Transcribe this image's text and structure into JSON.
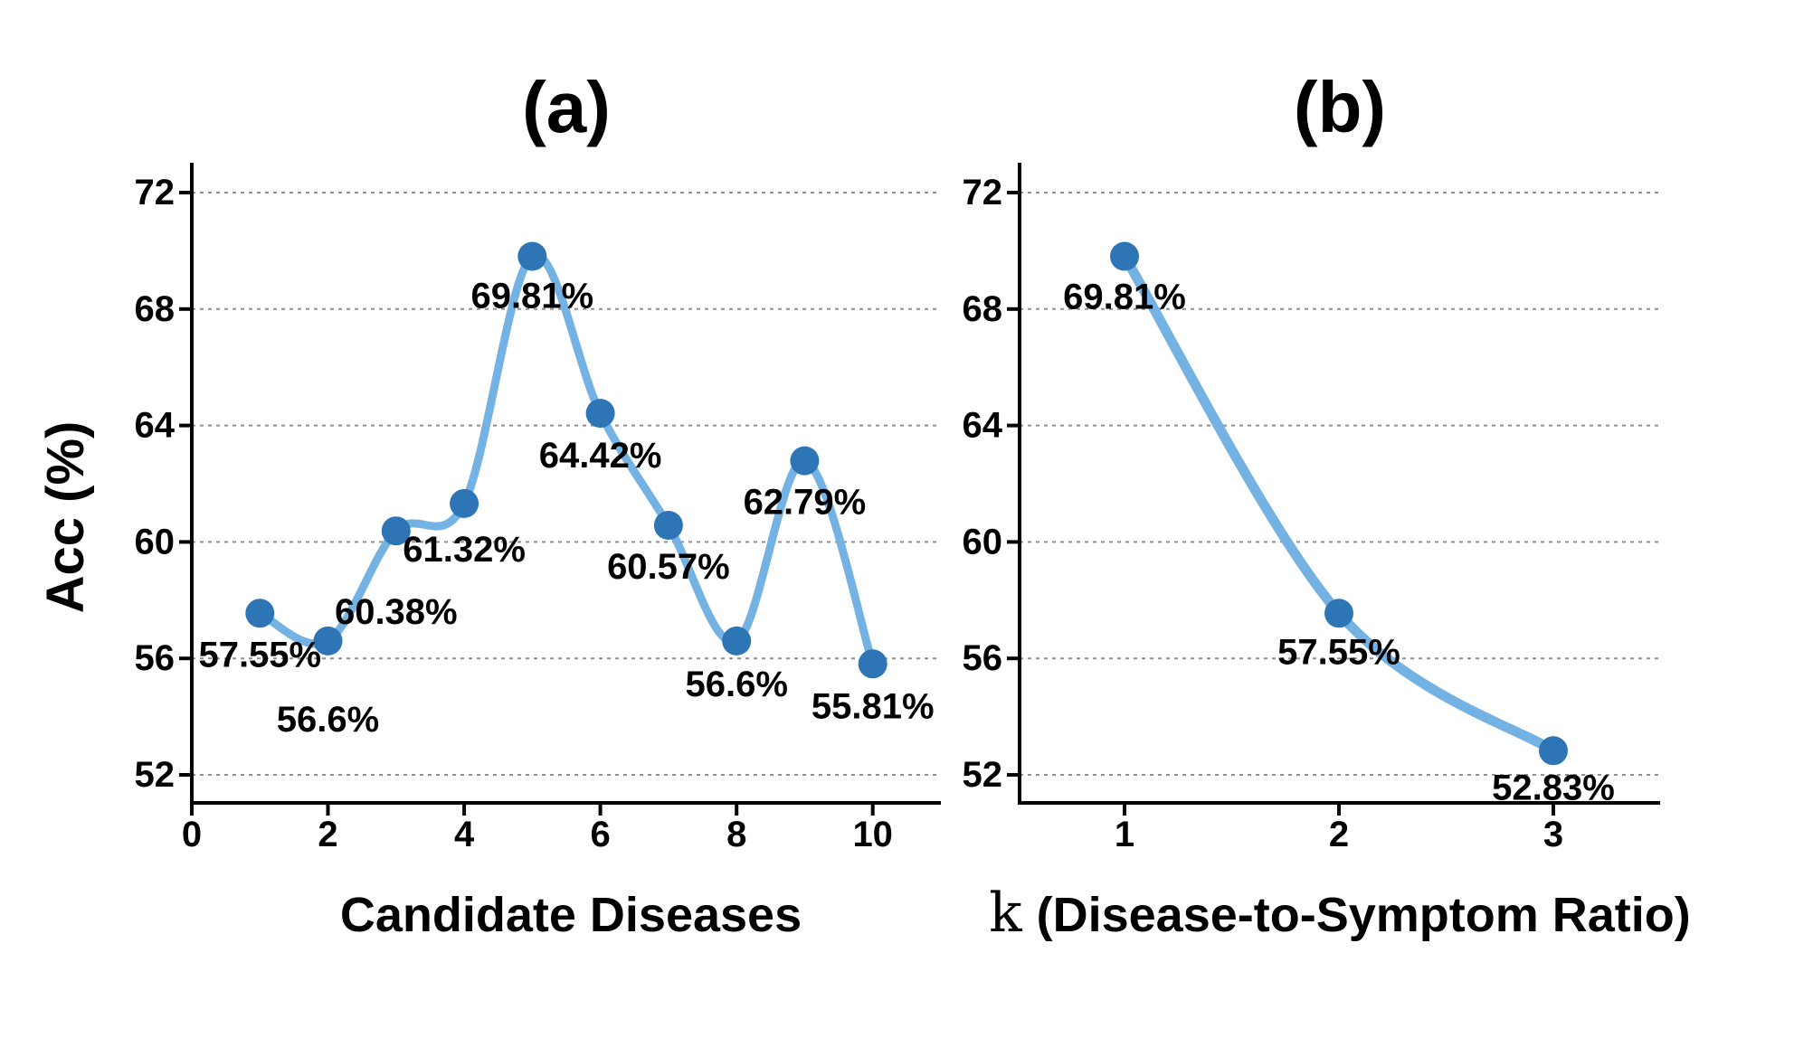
{
  "colors": {
    "line": "#73b2e2",
    "marker": "#2e75b6",
    "grid": "#8f8f8f",
    "axis": "#000000",
    "text": "#000000",
    "background": "#ffffff"
  },
  "chart_data": [
    {
      "id": "a",
      "type": "line",
      "title": "(a)",
      "xlabel": "Candidate Diseases",
      "ylabel": "Acc (%)",
      "x": [
        1,
        2,
        3,
        4,
        5,
        6,
        7,
        8,
        9,
        10
      ],
      "values": [
        57.55,
        56.6,
        60.38,
        61.32,
        69.81,
        64.42,
        60.57,
        56.6,
        62.79,
        55.81
      ],
      "labels": [
        "57.55%",
        "56.6%",
        "60.38%",
        "61.32%",
        "69.81%",
        "64.42%",
        "60.57%",
        "56.6%",
        "62.79%",
        "55.81%"
      ],
      "xticks": [
        0,
        2,
        4,
        6,
        8,
        10
      ],
      "yticks": [
        72,
        68,
        64,
        60,
        56,
        52
      ],
      "xlim": [
        0,
        11
      ],
      "ylim": [
        51,
        73
      ],
      "grid": "horizontal-dotted",
      "legend": "none",
      "label_dy": [
        45,
        86,
        89,
        50,
        43,
        46,
        45,
        47,
        45,
        46
      ]
    },
    {
      "id": "b",
      "type": "line",
      "title": "(b)",
      "xlabel_k": "k",
      "xlabel_main": "(Disease-to-Symptom Ratio)",
      "ylabel": "",
      "x": [
        1,
        2,
        3
      ],
      "values": [
        69.81,
        57.55,
        52.83
      ],
      "labels": [
        "69.81%",
        "57.55%",
        "52.83%"
      ],
      "xticks": [
        1,
        2,
        3
      ],
      "yticks": [
        72,
        68,
        64,
        60,
        56,
        52
      ],
      "xlim": [
        0.5,
        3.5
      ],
      "ylim": [
        51,
        73
      ],
      "grid": "horizontal-dotted",
      "legend": "none",
      "label_dy": [
        44,
        42,
        40
      ]
    }
  ]
}
